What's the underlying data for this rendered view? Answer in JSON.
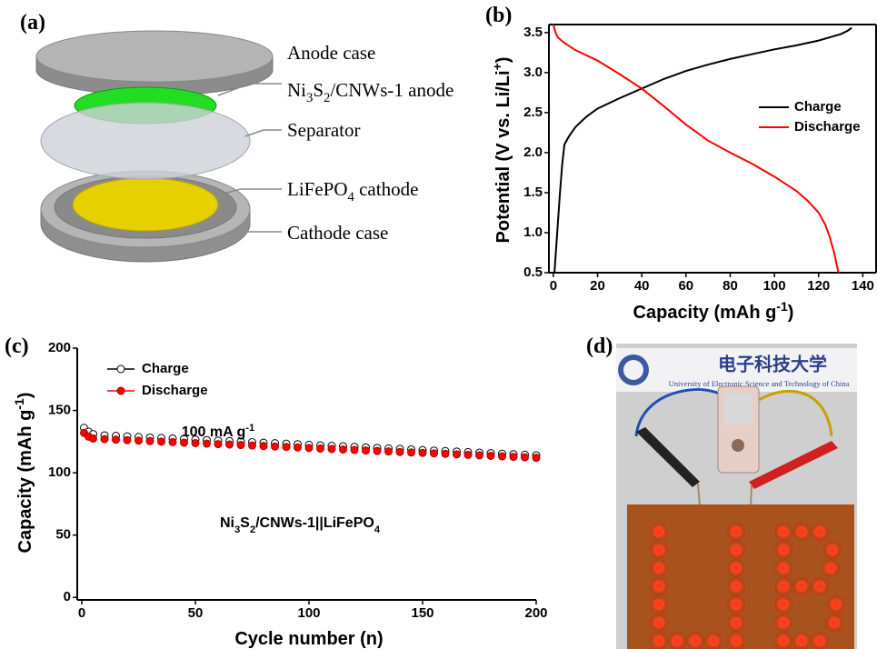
{
  "panel_labels": [
    "(a)",
    "(b)",
    "(c)",
    "(d)"
  ],
  "diagram": {
    "labels": [
      "Anode case",
      "Ni3S2/CNWs-1 anode",
      "Separator",
      "LiFePO4 cathode",
      "Cathode case"
    ]
  },
  "photo": {
    "logo_text": "电子科技大学",
    "logo_subtitle": "University of Electronic Science and Technology of China"
  },
  "chart_data": [
    {
      "type": "line",
      "xlabel": "Capacity (mAh g-1)",
      "ylabel": "Potential (V vs. Li/Li+)",
      "xlim": [
        -2,
        146
      ],
      "ylim": [
        0.5,
        3.6
      ],
      "xticks": [
        0,
        20,
        40,
        60,
        80,
        100,
        120,
        140
      ],
      "yticks": [
        0.5,
        {
          "value": 1,
          "label": "1.0"
        },
        1.5,
        {
          "value": 2,
          "label": "2.0"
        },
        2.5,
        {
          "value": 3,
          "label": "3.0"
        },
        3.5
      ],
      "legend": "center right",
      "series": [
        {
          "name": "Charge",
          "color": "#000000",
          "x": [
            0.5,
            1.5,
            3,
            4,
            5,
            7,
            10,
            15,
            20,
            30,
            40,
            50,
            60,
            70,
            80,
            90,
            100,
            110,
            120,
            125,
            130,
            133,
            135
          ],
          "values": [
            0.5,
            0.9,
            1.5,
            1.85,
            2.1,
            2.2,
            2.32,
            2.45,
            2.55,
            2.68,
            2.8,
            2.92,
            3.02,
            3.1,
            3.17,
            3.23,
            3.29,
            3.34,
            3.4,
            3.44,
            3.48,
            3.52,
            3.56
          ]
        },
        {
          "name": "Discharge",
          "color": "#ff0000",
          "x": [
            0,
            1,
            2,
            5,
            10,
            20,
            30,
            40,
            50,
            60,
            70,
            80,
            90,
            100,
            110,
            115,
            120,
            123,
            125,
            127,
            129
          ],
          "values": [
            3.6,
            3.5,
            3.44,
            3.37,
            3.28,
            3.15,
            2.98,
            2.8,
            2.58,
            2.35,
            2.15,
            2.0,
            1.86,
            1.7,
            1.52,
            1.4,
            1.25,
            1.1,
            0.95,
            0.75,
            0.5
          ]
        }
      ]
    },
    {
      "type": "scatter",
      "xlabel": "Cycle number (n)",
      "ylabel": "Capacity (mAh g-1)",
      "xlim": [
        -2,
        200
      ],
      "ylim": [
        -2,
        200
      ],
      "xticks": [
        0,
        50,
        100,
        150,
        200
      ],
      "yticks": [
        0,
        50,
        100,
        150,
        200
      ],
      "legend": "upper left",
      "annotations": [
        "100 mA g-1",
        "Ni3S2/CNWs-1||LiFePO4"
      ],
      "x": [
        1,
        3,
        5,
        10,
        15,
        20,
        25,
        30,
        35,
        40,
        45,
        50,
        55,
        60,
        65,
        70,
        75,
        80,
        85,
        90,
        95,
        100,
        105,
        110,
        115,
        120,
        125,
        130,
        135,
        140,
        145,
        150,
        155,
        160,
        165,
        170,
        175,
        180,
        185,
        190,
        195,
        200
      ],
      "series": [
        {
          "name": "Charge",
          "color": "#000000",
          "marker": "open",
          "values": [
            136,
            133,
            131,
            130,
            129.6,
            129.2,
            128.7,
            128.3,
            127.9,
            127.5,
            127.1,
            126.6,
            126.2,
            125.8,
            125.4,
            125.0,
            124.5,
            124.1,
            123.7,
            123.3,
            122.9,
            122.4,
            122.0,
            121.6,
            121.2,
            120.8,
            120.3,
            119.9,
            119.5,
            119.1,
            118.7,
            118.2,
            117.8,
            117.4,
            117.0,
            116.6,
            116.1,
            115.7,
            115.3,
            114.9,
            114.5,
            114.0
          ]
        },
        {
          "name": "Discharge",
          "color": "#ff0000",
          "marker": "filled",
          "values": [
            132,
            129,
            127.5,
            127,
            126.6,
            126.2,
            125.8,
            125.4,
            125.0,
            124.6,
            124.2,
            123.8,
            123.4,
            123.0,
            122.7,
            122.3,
            121.9,
            121.5,
            121.1,
            120.7,
            120.3,
            119.9,
            119.5,
            119.1,
            118.7,
            118.3,
            117.9,
            117.5,
            117.1,
            116.7,
            116.3,
            116.0,
            115.6,
            115.2,
            114.8,
            114.4,
            114.0,
            113.6,
            113.2,
            112.8,
            112.4,
            112.0
          ]
        }
      ]
    }
  ]
}
